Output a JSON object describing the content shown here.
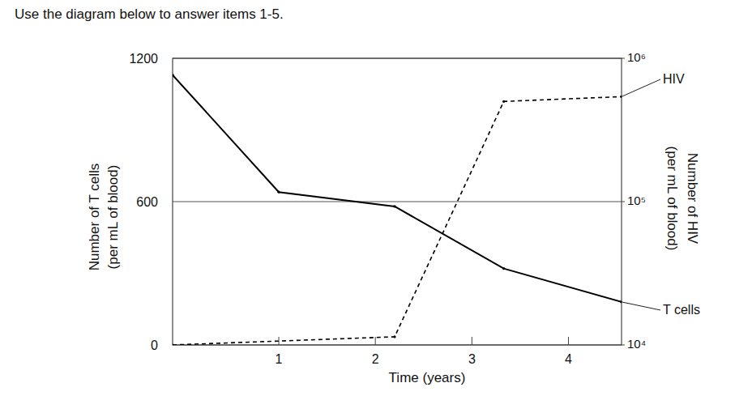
{
  "instruction": "Use the diagram below to answer items 1-5.",
  "chart_data": {
    "type": "line",
    "xlabel": "Time (years)",
    "ylabel": "Number of T cells\n(per mL of blood)",
    "y2label": "Number of HIV\n(per mL of blood)",
    "xlim": [
      -0.1,
      4.55
    ],
    "xticks": [
      1,
      2,
      3,
      4
    ],
    "ylim": [
      0,
      1200
    ],
    "yticks": [
      0,
      600,
      1200
    ],
    "y2lim": [
      10000,
      1000000
    ],
    "y2ticks": [
      {
        "value": 10000,
        "label": "10⁴"
      },
      {
        "value": 100000,
        "label": "10⁵"
      },
      {
        "value": 1000000,
        "label": "10⁶"
      }
    ],
    "log": "y2",
    "grid": true,
    "series": [
      {
        "name": "T cells",
        "color": "#000000",
        "line_style": "solid",
        "x": [
          -0.1,
          1.0,
          2.2,
          3.33,
          4.55
        ],
        "values": [
          1130,
          640,
          580,
          320,
          180
        ]
      },
      {
        "name": "HIV",
        "color": "#000000",
        "line_style": "dashed",
        "axis": "y2",
        "x": [
          -0.1,
          2.2,
          3.33,
          4.55
        ],
        "values": [
          10000,
          11400,
          500000,
          540000
        ]
      }
    ]
  }
}
